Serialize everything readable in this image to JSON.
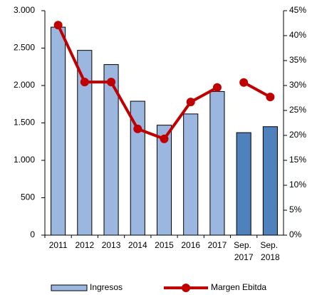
{
  "chart_data": {
    "type": "bar-line",
    "categories": [
      "2011",
      "2012",
      "2013",
      "2014",
      "2015",
      "2016",
      "2017",
      "Sep. 2017",
      "Sep. 2018"
    ],
    "series": [
      {
        "name": "Ingresos",
        "type": "bar",
        "colors": [
          "#9bb7e0",
          "#9bb7e0",
          "#9bb7e0",
          "#9bb7e0",
          "#9bb7e0",
          "#9bb7e0",
          "#9bb7e0",
          "#4f81bd",
          "#4f81bd"
        ],
        "values": [
          2780,
          2470,
          2280,
          1790,
          1470,
          1620,
          1920,
          1370,
          1450
        ]
      },
      {
        "name": "Margen Ebitda",
        "type": "line",
        "axis": "y2",
        "color": "#c00000",
        "line_break_after": 6,
        "values": [
          42.1,
          30.7,
          30.7,
          21.3,
          19.3,
          26.7,
          29.6,
          30.6,
          27.7
        ]
      }
    ],
    "ylim": [
      0,
      3000
    ],
    "yticks": [
      0,
      500,
      {
        "value": 1000,
        "label": "1.000"
      },
      {
        "value": 1500,
        "label": "1.500"
      },
      {
        "value": 2000,
        "label": "2.000"
      },
      {
        "value": 2500,
        "label": "2.500"
      },
      {
        "value": 3000,
        "label": "3.000"
      }
    ],
    "y2lim": [
      0,
      45
    ],
    "y2ticks": [
      {
        "value": 0,
        "label": "0%"
      },
      {
        "value": 5,
        "label": "5%"
      },
      {
        "value": 10,
        "label": "10%"
      },
      {
        "value": 15,
        "label": "15%"
      },
      {
        "value": 20,
        "label": "20%"
      },
      {
        "value": 25,
        "label": "25%"
      },
      {
        "value": 30,
        "label": "30%"
      },
      {
        "value": 35,
        "label": "35%"
      },
      {
        "value": 40,
        "label": "40%"
      },
      {
        "value": 45,
        "label": "45%"
      }
    ]
  }
}
